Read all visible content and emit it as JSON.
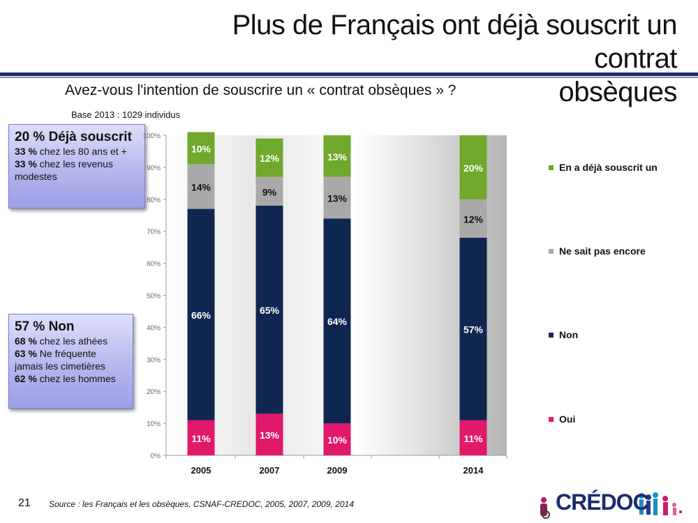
{
  "header": {
    "title_line1": "Plus de Français ont déjà souscrit un contrat",
    "title_line2": "obsèques",
    "question": "Avez-vous l'intention de souscrire un « contrat obsèques » ?",
    "base": "Base 2013 : 1029 individus"
  },
  "callouts": {
    "first": {
      "headline": "20 % Déjà souscrit",
      "lines": [
        {
          "bold": "33 %",
          "text": " chez les 80 ans et +"
        },
        {
          "bold": "33 %",
          "text": " chez les revenus modestes"
        }
      ]
    },
    "second": {
      "headline": "57 % Non",
      "lines": [
        {
          "bold": "68 %",
          "text": " chez les athées"
        },
        {
          "bold": "63 %",
          "text": " Ne fréquente jamais les cimetières"
        },
        {
          "bold": "62 %",
          "text": " chez les hommes"
        }
      ]
    }
  },
  "chart_data": {
    "type": "bar",
    "stacked": true,
    "categories": [
      "2005",
      "2007",
      "2009",
      "2014"
    ],
    "series": [
      {
        "name": "Oui",
        "color": "#e0196a",
        "values": [
          11,
          13,
          10,
          11
        ],
        "labels": [
          "11%",
          "13%",
          "10%",
          "11%"
        ]
      },
      {
        "name": "Non",
        "color": "#0f2650",
        "values": [
          66,
          65,
          64,
          57
        ],
        "labels": [
          "66%",
          "65%",
          "64%",
          "57%"
        ]
      },
      {
        "name": "Ne sait pas encore",
        "color": "#a9a9a9",
        "values": [
          14,
          9,
          13,
          12
        ],
        "labels": [
          "14%",
          "9%",
          "13%",
          "12%"
        ]
      },
      {
        "name": "En a déjà souscrit un",
        "color": "#6fa82b",
        "values": [
          10,
          12,
          13,
          20
        ],
        "labels": [
          "10%",
          "12%",
          "13%",
          "20%"
        ]
      }
    ],
    "ylim": [
      0,
      100
    ],
    "yticks": [
      "0%",
      "10%",
      "20%",
      "30%",
      "40%",
      "50%",
      "60%",
      "70%",
      "80%",
      "90%",
      "100%"
    ],
    "legend_position": "right",
    "grid": false
  },
  "legend": [
    {
      "label": "En a déjà souscrit un",
      "color": "#6fa82b"
    },
    {
      "label": "Ne sait pas encore",
      "color": "#a9a9a9"
    },
    {
      "label": "Non",
      "color": "#0f2650"
    },
    {
      "label": "Oui",
      "color": "#e0196a"
    }
  ],
  "footer": {
    "slide_number": "21",
    "source": "Source : les Français et les obsèques, CSNAF-CREDOC, 2005, 2007, 2009, 2014",
    "logo_text": "CRÉDOC"
  }
}
